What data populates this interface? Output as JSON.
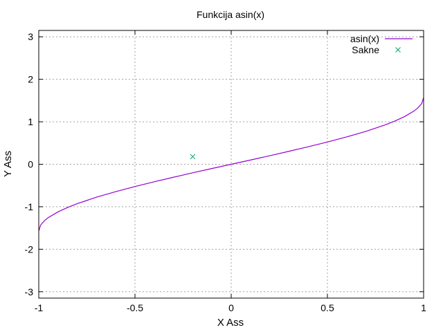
{
  "chart_data": {
    "type": "line",
    "title": "Funkcija asin(x)",
    "xlabel": "X Ass",
    "ylabel": "Y Ass",
    "xlim": [
      -1,
      1
    ],
    "ylim": [
      -3.15,
      3.15
    ],
    "grid": true,
    "legend_position": "top-right",
    "x_ticks": [
      -1,
      -0.5,
      0,
      0.5,
      1
    ],
    "x_tick_labels": [
      "-1",
      "-0.5",
      "0",
      "0.5",
      "1"
    ],
    "y_ticks": [
      -3,
      -2,
      -1,
      0,
      1,
      2,
      3
    ],
    "y_tick_labels": [
      "-3",
      "-2",
      "-1",
      "0",
      "1",
      "2",
      "3"
    ],
    "series": [
      {
        "name": "asin(x)",
        "kind": "line",
        "color": "#9400d3",
        "x": [
          -1,
          -0.99,
          -0.97,
          -0.95,
          -0.9,
          -0.85,
          -0.8,
          -0.7,
          -0.6,
          -0.5,
          -0.4,
          -0.3,
          -0.2,
          -0.1,
          0,
          0.1,
          0.2,
          0.3,
          0.4,
          0.5,
          0.6,
          0.7,
          0.8,
          0.85,
          0.9,
          0.95,
          0.97,
          0.99,
          1
        ],
        "y": [
          -1.571,
          -1.429,
          -1.326,
          -1.253,
          -1.12,
          -1.016,
          -0.927,
          -0.775,
          -0.644,
          -0.524,
          -0.412,
          -0.305,
          -0.201,
          -0.1,
          0,
          0.1,
          0.201,
          0.305,
          0.412,
          0.524,
          0.644,
          0.775,
          0.927,
          1.016,
          1.12,
          1.253,
          1.326,
          1.429,
          1.571
        ]
      },
      {
        "name": "Sakne",
        "kind": "points",
        "marker": "x",
        "color": "#009e73",
        "x": [
          -0.2
        ],
        "y": [
          0.18
        ]
      }
    ]
  }
}
